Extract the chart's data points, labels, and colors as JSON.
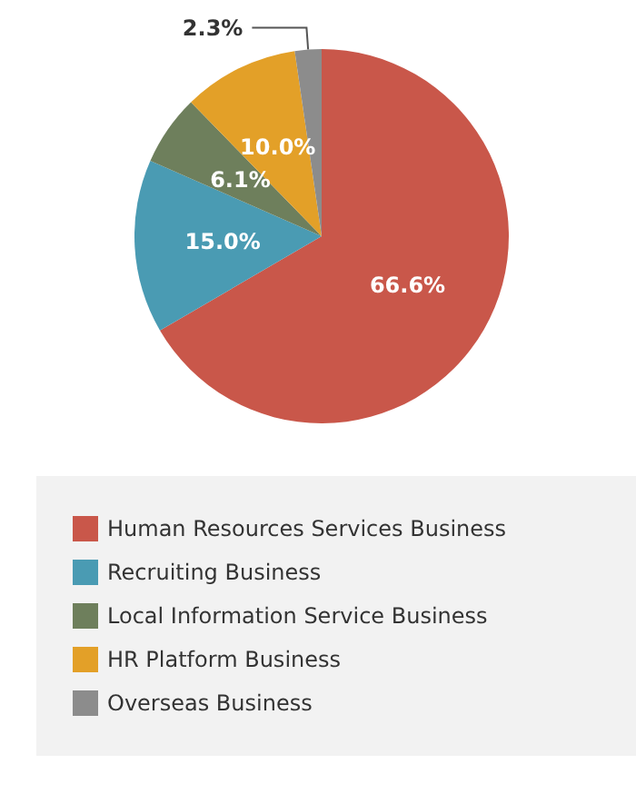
{
  "chart_data": {
    "type": "pie",
    "categories": [
      "Human Resources Services Business",
      "Recruiting Business",
      "Local Information Service Business",
      "HR Platform Business",
      "Overseas Business"
    ],
    "values": [
      66.6,
      15.0,
      6.1,
      10.0,
      2.3
    ],
    "value_labels": [
      "66.6%",
      "15.0%",
      "6.1%",
      "10.0%",
      "2.3%"
    ],
    "colors": [
      "#c9574a",
      "#4a9bb3",
      "#6e7f5c",
      "#e3a028",
      "#8c8c8c"
    ],
    "legend": "bottom"
  }
}
